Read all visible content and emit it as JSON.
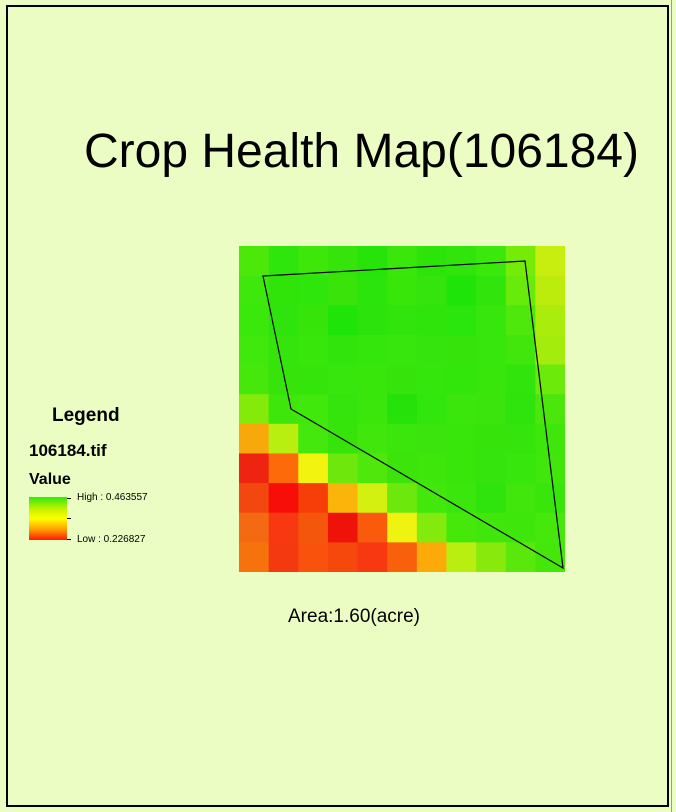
{
  "title": "Crop Health Map(106184)",
  "area_text": "Area:1.60(acre)",
  "legend": {
    "title": "Legend",
    "layer_name": "106184.tif",
    "field_name": "Value",
    "high_label": "High : 0.463557",
    "low_label": "Low : 0.226827",
    "ramp_colors": [
      "#2eea10",
      "#b8f000",
      "#ffff00",
      "#ffa000",
      "#ff1a00"
    ]
  },
  "raster": {
    "rows": 11,
    "cols": 11,
    "cells": [
      [
        "#4ce80a",
        "#2fe60c",
        "#3ee60a",
        "#36e40c",
        "#26e40a",
        "#3ae60c",
        "#2ce40a",
        "#30e40c",
        "#3ae80c",
        "#74ec08",
        "#c8ee10"
      ],
      [
        "#3ee80c",
        "#30e40a",
        "#2ee60c",
        "#3ae40a",
        "#2ae40c",
        "#38e60a",
        "#34e40c",
        "#1ee40a",
        "#30e40c",
        "#68ea0a",
        "#bcec0c"
      ],
      [
        "#3ae80c",
        "#2ee40c",
        "#36e40a",
        "#1ee40a",
        "#2ce40c",
        "#30e40c",
        "#2ee40a",
        "#2ae60c",
        "#36e60c",
        "#4ee80c",
        "#aaec0c"
      ],
      [
        "#40e80c",
        "#34e40c",
        "#38e60c",
        "#30e40c",
        "#34e60c",
        "#36e60c",
        "#34e40c",
        "#36e40c",
        "#36e60c",
        "#40e60c",
        "#a4ec0c"
      ],
      [
        "#46e80c",
        "#36e40c",
        "#34e40a",
        "#36e60c",
        "#38e60c",
        "#36e40c",
        "#34e60c",
        "#32e60c",
        "#38e60c",
        "#30e40c",
        "#6cea0a"
      ],
      [
        "#84ea0a",
        "#3ee60c",
        "#40e80c",
        "#34e40c",
        "#3ae60c",
        "#24e20a",
        "#30e60c",
        "#3ae60c",
        "#3ae40c",
        "#2ee40c",
        "#4ae60c"
      ],
      [
        "#f8a80a",
        "#b8ee10",
        "#44e80c",
        "#36e40c",
        "#40e60c",
        "#3ae60c",
        "#3ae40c",
        "#38e60c",
        "#36e40c",
        "#34e40c",
        "#3ee60c"
      ],
      [
        "#ee2410",
        "#fc6a0a",
        "#f2f410",
        "#6ee80c",
        "#4ee80c",
        "#3ce40c",
        "#3ee60c",
        "#38e60c",
        "#34e40c",
        "#36e60c",
        "#40e60c"
      ],
      [
        "#f24810",
        "#f80e08",
        "#f83e08",
        "#fbb40a",
        "#d4f010",
        "#6ce80c",
        "#42e80c",
        "#3ae60c",
        "#2ee40c",
        "#40e60c",
        "#38e60c"
      ],
      [
        "#f46a12",
        "#f83810",
        "#f4560c",
        "#ee1208",
        "#fa5a0c",
        "#eef410",
        "#82ea0c",
        "#46e80c",
        "#40e60c",
        "#3ee60c",
        "#46e80c"
      ],
      [
        "#f6720c",
        "#f43810",
        "#f8520c",
        "#f6480c",
        "#f83810",
        "#f8600c",
        "#fcaa0a",
        "#baee10",
        "#88ea0c",
        "#5ae80c",
        "#44e60c"
      ]
    ]
  }
}
